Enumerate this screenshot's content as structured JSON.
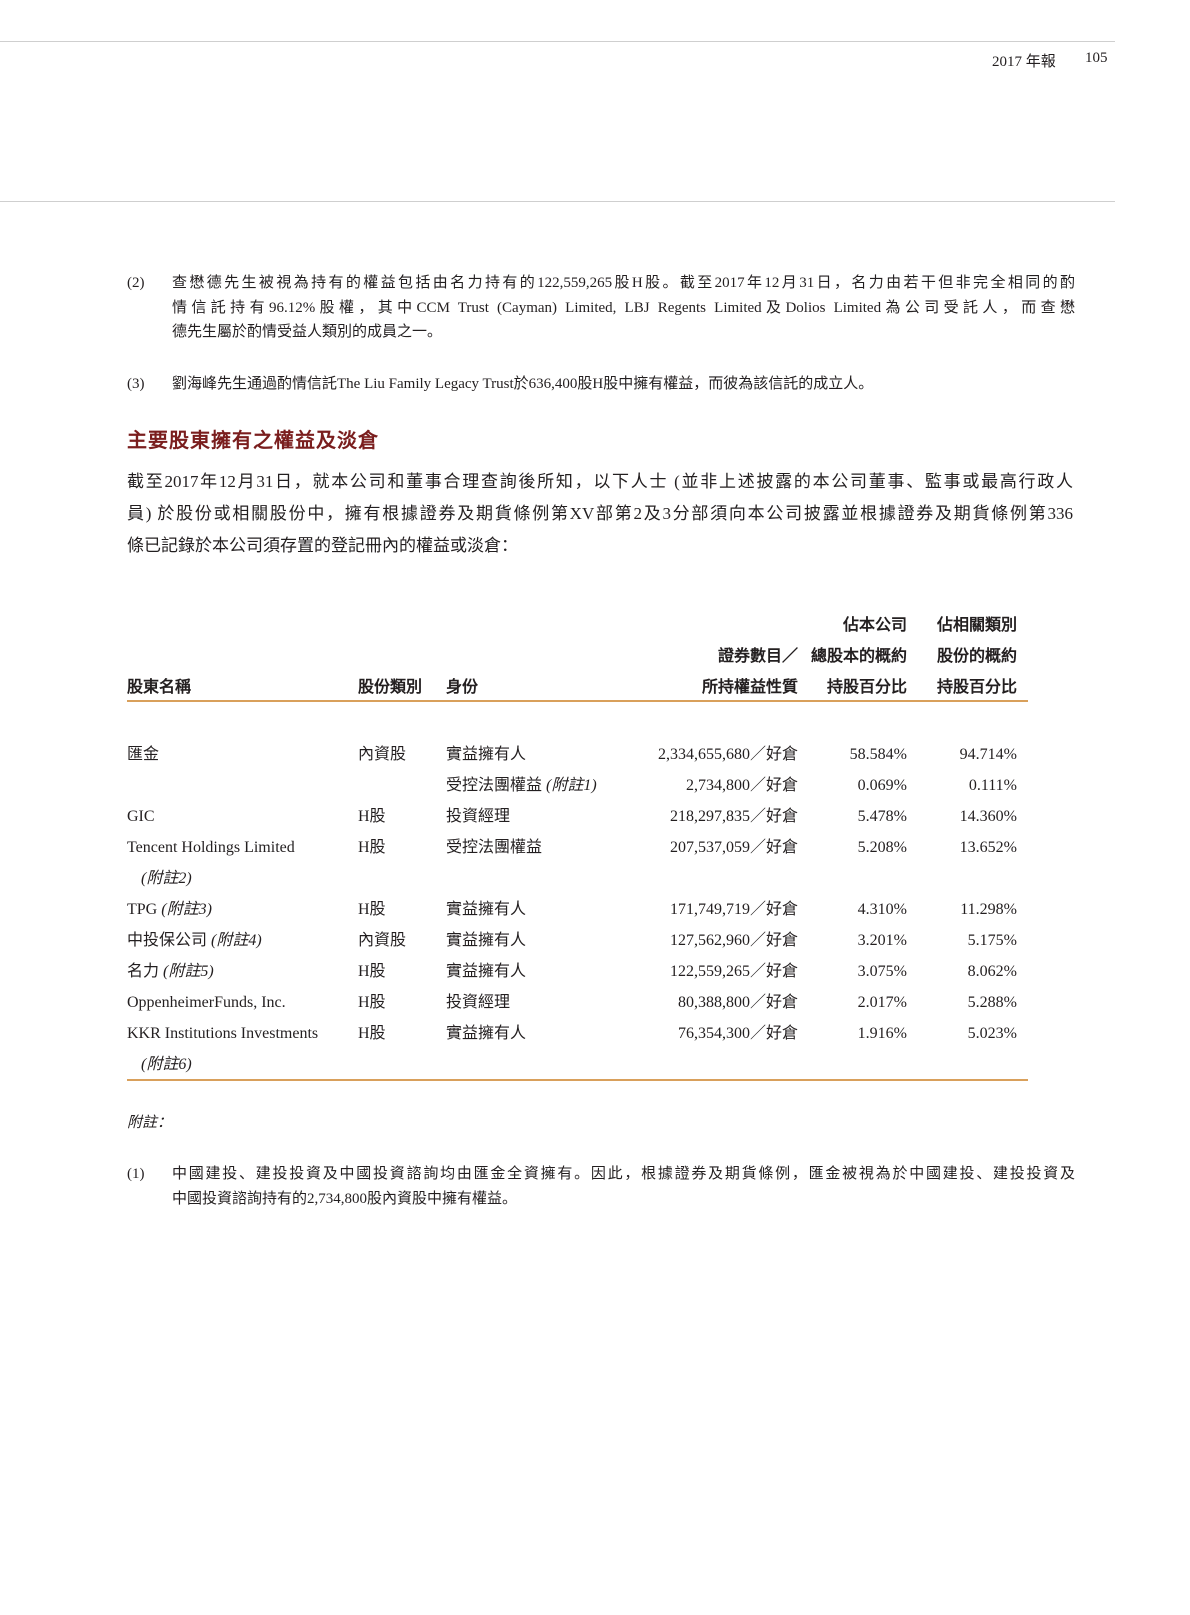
{
  "header": {
    "report": "2017 年報",
    "page_number": "105"
  },
  "notes_top": [
    {
      "num": "(2)",
      "lines": [
        "查懋德先生被視為持有的權益包括由名力持有的122,559,265股H股。截至2017年12月31日，名力由若干但非完全相同的酌",
        "情信託持有96.12%股權，其中CCM Trust (Cayman) Limited, LBJ Regents Limited及Dolios Limited為公司受託人，而查懋",
        "德先生屬於酌情受益人類別的成員之一。"
      ]
    },
    {
      "num": "(3)",
      "lines": [
        "劉海峰先生通過酌情信託The Liu Family Legacy Trust於636,400股H股中擁有權益，而彼為該信託的成立人。"
      ]
    }
  ],
  "section_title": "主要股東擁有之權益及淡倉",
  "intro_lines": [
    "截至2017年12月31日，就本公司和董事合理查詢後所知，以下人士 (並非上述披露的本公司董事、監事或最高行政人",
    "員) 於股份或相關股份中，擁有根據證券及期貨條例第XV部第2及3分部須向本公司披露並根據證券及期貨條例第336",
    "條已記錄於本公司須存置的登記冊內的權益或淡倉："
  ],
  "table": {
    "headers": {
      "name": "股東名稱",
      "class": "股份類別",
      "capacity": "身份",
      "shares": [
        "證券數目／",
        "所持權益性質"
      ],
      "pct_total": [
        "佔本公司",
        "總股本的概約",
        "持股百分比"
      ],
      "pct_class": [
        "佔相關類別",
        "股份的概約",
        "持股百分比"
      ]
    },
    "rows": [
      {
        "name": "匯金",
        "note": "",
        "class": "內資股",
        "capacity": "實益擁有人",
        "capacity_note": "",
        "shares": "2,334,655,680／好倉",
        "pct_total": "58.584%",
        "pct_class": "94.714%"
      },
      {
        "name": "",
        "note": "",
        "class": "",
        "capacity": "受控法團權益",
        "capacity_note": "(附註1)",
        "shares": "2,734,800／好倉",
        "pct_total": "0.069%",
        "pct_class": "0.111%"
      },
      {
        "name": "GIC",
        "note": "",
        "class": "H股",
        "capacity": "投資經理",
        "capacity_note": "",
        "shares": "218,297,835／好倉",
        "pct_total": "5.478%",
        "pct_class": "14.360%"
      },
      {
        "name": "Tencent Holdings Limited",
        "note": "(附註2)",
        "wrap": true,
        "class": "H股",
        "capacity": "受控法團權益",
        "capacity_note": "",
        "shares": "207,537,059／好倉",
        "pct_total": "5.208%",
        "pct_class": "13.652%"
      },
      {
        "name": "TPG",
        "note": "(附註3)",
        "class": "H股",
        "capacity": "實益擁有人",
        "capacity_note": "",
        "shares": "171,749,719／好倉",
        "pct_total": "4.310%",
        "pct_class": "11.298%"
      },
      {
        "name": "中投保公司",
        "note": "(附註4)",
        "class": "內資股",
        "capacity": "實益擁有人",
        "capacity_note": "",
        "shares": "127,562,960／好倉",
        "pct_total": "3.201%",
        "pct_class": "5.175%"
      },
      {
        "name": "名力",
        "note": "(附註5)",
        "class": "H股",
        "capacity": "實益擁有人",
        "capacity_note": "",
        "shares": "122,559,265／好倉",
        "pct_total": "3.075%",
        "pct_class": "8.062%"
      },
      {
        "name": "OppenheimerFunds, Inc.",
        "note": "",
        "class": "H股",
        "capacity": "投資經理",
        "capacity_note": "",
        "shares": "80,388,800／好倉",
        "pct_total": "2.017%",
        "pct_class": "5.288%"
      },
      {
        "name": "KKR Institutions Investments",
        "note": "(附註6)",
        "wrap": true,
        "class": "H股",
        "capacity": "實益擁有人",
        "capacity_note": "",
        "shares": "76,354,300／好倉",
        "pct_total": "1.916%",
        "pct_class": "5.023%"
      }
    ],
    "rule_color": "#d9a05b"
  },
  "footnotes_label": "附註：",
  "footnotes": [
    {
      "num": "(1)",
      "lines": [
        "中國建投、建投投資及中國投資諮詢均由匯金全資擁有。因此，根據證券及期貨條例，匯金被視為於中國建投、建投投資及",
        "中國投資諮詢持有的2,734,800股內資股中擁有權益。"
      ]
    }
  ],
  "colors": {
    "heading": "#7a1e1e",
    "rule": "#d9a05b"
  }
}
